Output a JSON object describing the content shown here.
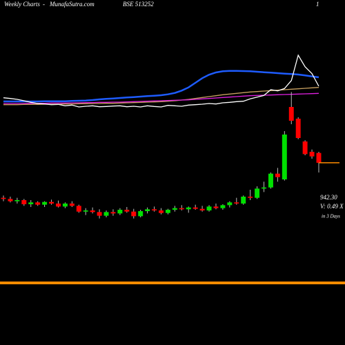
{
  "chart_data": {
    "type": "candlestick",
    "header": [
      "Weekly Charts",
      "-",
      "MunafaSutra.com",
      "BSE 513252",
      "1"
    ],
    "last_price_label": "942.30",
    "volume_label": "V: 0.49 X",
    "period_label": "in 3 Days",
    "ylim": [
      150,
      1650
    ],
    "up_color": "#00e000",
    "down_color": "#ff0000",
    "last_price_color": "#ff8c00",
    "candles": [
      [
        790,
        800,
        775,
        785
      ],
      [
        785,
        795,
        770,
        775
      ],
      [
        775,
        790,
        765,
        780
      ],
      [
        780,
        785,
        755,
        762
      ],
      [
        762,
        780,
        750,
        770
      ],
      [
        770,
        775,
        755,
        760
      ],
      [
        760,
        775,
        750,
        772
      ],
      [
        772,
        782,
        760,
        765
      ],
      [
        765,
        778,
        748,
        752
      ],
      [
        752,
        770,
        745,
        765
      ],
      [
        765,
        775,
        750,
        755
      ],
      [
        755,
        760,
        725,
        730
      ],
      [
        730,
        745,
        715,
        735
      ],
      [
        735,
        748,
        722,
        728
      ],
      [
        728,
        740,
        700,
        712
      ],
      [
        712,
        735,
        705,
        728
      ],
      [
        728,
        740,
        712,
        722
      ],
      [
        722,
        745,
        715,
        738
      ],
      [
        738,
        750,
        725,
        730
      ],
      [
        730,
        742,
        700,
        710
      ],
      [
        710,
        738,
        705,
        732
      ],
      [
        732,
        748,
        722,
        740
      ],
      [
        740,
        752,
        730,
        735
      ],
      [
        735,
        745,
        718,
        724
      ],
      [
        724,
        742,
        718,
        738
      ],
      [
        738,
        755,
        730,
        745
      ],
      [
        745,
        758,
        735,
        740
      ],
      [
        740,
        752,
        725,
        748
      ],
      [
        748,
        760,
        738,
        742
      ],
      [
        742,
        755,
        730,
        735
      ],
      [
        735,
        758,
        730,
        752
      ],
      [
        752,
        765,
        740,
        745
      ],
      [
        745,
        762,
        738,
        758
      ],
      [
        758,
        775,
        748,
        770
      ],
      [
        770,
        790,
        760,
        765
      ],
      [
        765,
        800,
        760,
        795
      ],
      [
        795,
        825,
        780,
        790
      ],
      [
        790,
        840,
        785,
        830
      ],
      [
        830,
        860,
        815,
        835
      ],
      [
        835,
        900,
        830,
        895
      ],
      [
        895,
        920,
        860,
        880
      ],
      [
        870,
        1080,
        865,
        1065
      ],
      [
        1185,
        1250,
        1110,
        1125
      ],
      [
        1134,
        1140,
        1045,
        1050
      ],
      [
        1035,
        1040,
        975,
        980
      ],
      [
        990,
        1000,
        960,
        970
      ],
      [
        985,
        990,
        900,
        942.3
      ]
    ],
    "series": [
      {
        "color": "#1e5cff",
        "values": [
          1209,
          1209,
          1209,
          1209,
          1209,
          1209,
          1210,
          1210,
          1210,
          1210,
          1211,
          1212,
          1213,
          1215,
          1218,
          1220,
          1222,
          1224,
          1226,
          1228,
          1230,
          1232,
          1234,
          1236,
          1240,
          1246,
          1256,
          1270,
          1290,
          1310,
          1325,
          1335,
          1340,
          1342,
          1342,
          1341,
          1340,
          1338,
          1336,
          1334,
          1332,
          1330,
          1328,
          1326,
          1322,
          1318,
          1314
        ]
      },
      {
        "color": "#c8a060",
        "values": [
          1195,
          1195,
          1195,
          1196,
          1196,
          1196,
          1197,
          1197,
          1197,
          1198,
          1198,
          1199,
          1199,
          1200,
          1200,
          1201,
          1201,
          1202,
          1203,
          1204,
          1205,
          1206,
          1207,
          1208,
          1210,
          1212,
          1215,
          1218,
          1222,
          1226,
          1230,
          1234,
          1238,
          1241,
          1244,
          1247,
          1250,
          1252,
          1254,
          1256,
          1258,
          1260,
          1262,
          1264,
          1266,
          1268,
          1270
        ]
      },
      {
        "color": "#e020e0",
        "values": [
          1200,
          1200,
          1200,
          1200,
          1201,
          1201,
          1201,
          1202,
          1202,
          1202,
          1203,
          1203,
          1204,
          1204,
          1205,
          1205,
          1206,
          1206,
          1207,
          1208,
          1209,
          1210,
          1211,
          1212,
          1213,
          1214,
          1215,
          1216,
          1218,
          1220,
          1222,
          1224,
          1226,
          1228,
          1230,
          1232,
          1234,
          1235,
          1236,
          1237,
          1238,
          1239,
          1240,
          1241,
          1242,
          1243,
          1244
        ]
      },
      {
        "color": "#ffffff",
        "values": [
          1225,
          1222,
          1218,
          1212,
          1205,
          1200,
          1198,
          1195,
          1196,
          1190,
          1193,
          1185,
          1188,
          1190,
          1186,
          1187,
          1189,
          1190,
          1186,
          1188,
          1185,
          1190,
          1187,
          1185,
          1192,
          1190,
          1188,
          1193,
          1195,
          1197,
          1200,
          1198,
          1203,
          1205,
          1208,
          1210,
          1220,
          1228,
          1235,
          1260,
          1255,
          1265,
          1300,
          1410,
          1360,
          1330,
          1275
        ]
      }
    ]
  }
}
